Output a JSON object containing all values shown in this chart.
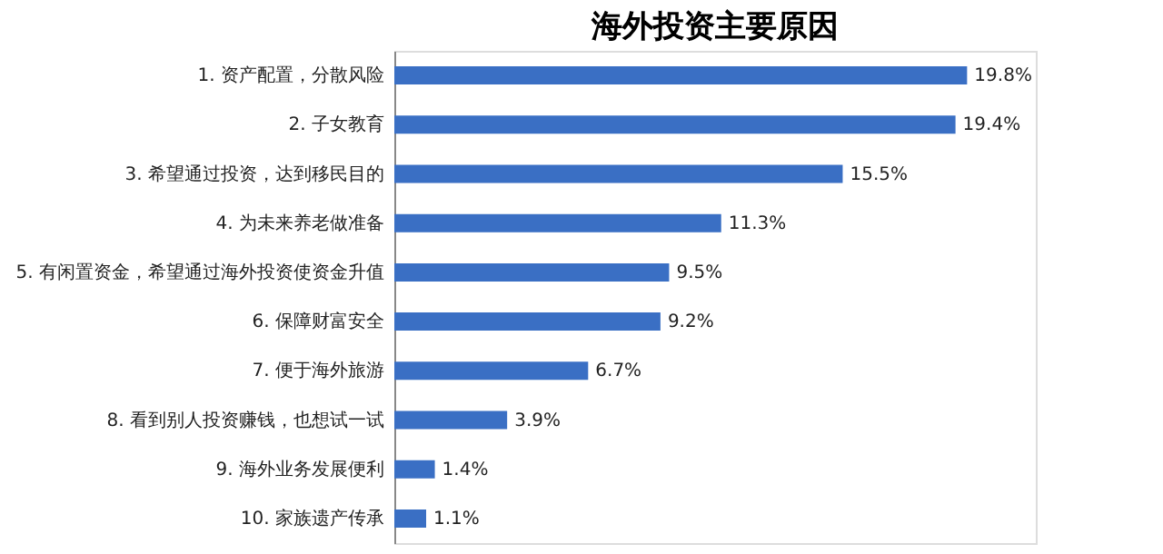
{
  "chart_data": {
    "type": "bar",
    "orientation": "horizontal",
    "title": "海外投资主要原因",
    "categories": [
      "1. 资产配置，分散风险",
      "2. 子女教育",
      "3. 希望通过投资，达到移民目的",
      "4. 为未来养老做准备",
      "5. 有闲置资金，希望通过海外投资使资金升值",
      "6. 保障财富安全",
      "7. 便于海外旅游",
      "8. 看到别人投资赚钱，也想试一试",
      "9. 海外业务发展便利",
      "10. 家族遗产传承"
    ],
    "values": [
      19.8,
      19.4,
      15.5,
      11.3,
      9.5,
      9.2,
      6.7,
      3.9,
      1.4,
      1.1
    ],
    "value_labels": [
      "19.8%",
      "19.4%",
      "15.5%",
      "11.3%",
      "9.5%",
      "9.2%",
      "6.7%",
      "3.9%",
      "1.4%",
      "1.1%"
    ],
    "color": "#3a6fc4",
    "grid": false
  }
}
